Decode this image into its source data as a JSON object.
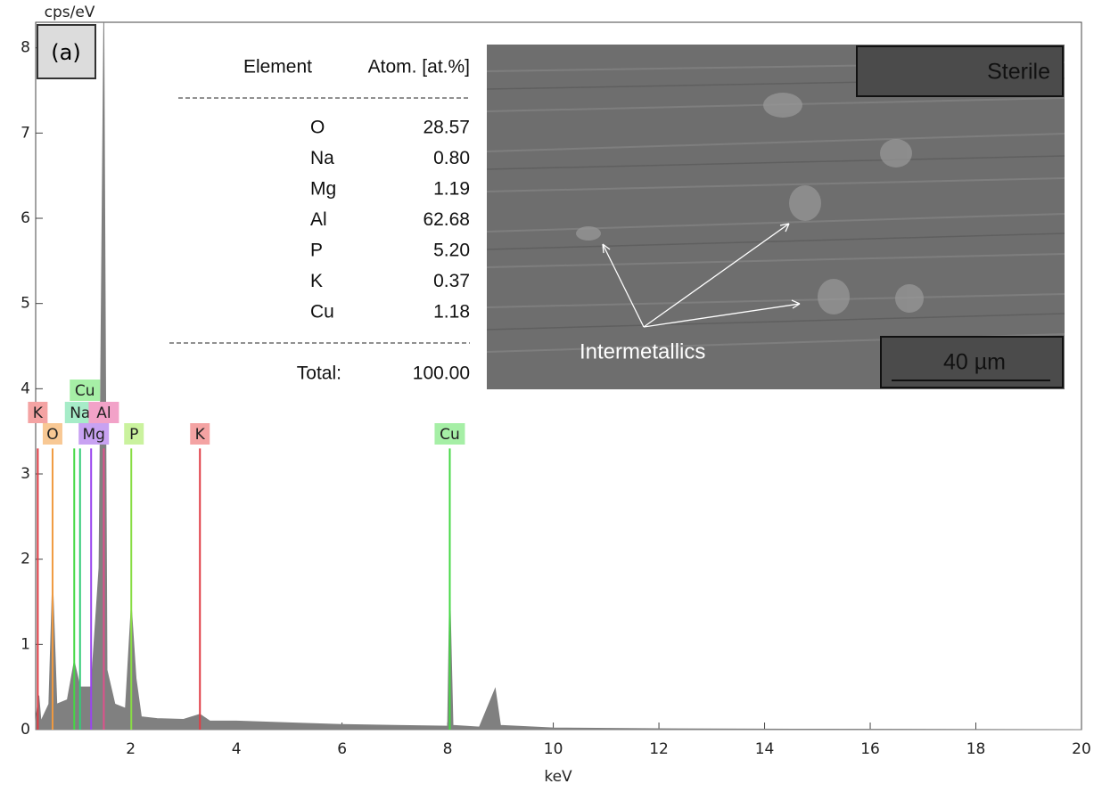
{
  "chart_data": {
    "type": "spectrum",
    "panel_label": "(a)",
    "ylabel": "cps/eV",
    "xlabel": "keV",
    "xlim": [
      0.2,
      20
    ],
    "xticks": [
      2,
      4,
      6,
      8,
      10,
      12,
      14,
      16,
      18,
      20
    ],
    "ylim": [
      0,
      8.3
    ],
    "yticks": [
      0,
      1,
      2,
      3,
      4,
      5,
      6,
      7,
      8
    ],
    "spectrum": {
      "color": "#808080",
      "x": [
        0.2,
        0.26,
        0.3,
        0.45,
        0.52,
        0.6,
        0.8,
        0.93,
        1.04,
        1.25,
        1.4,
        1.49,
        1.55,
        1.7,
        1.9,
        2.01,
        2.1,
        2.2,
        2.5,
        3,
        3.31,
        3.5,
        4,
        5,
        6,
        7,
        8,
        8.04,
        8.1,
        8.6,
        8.9,
        9,
        10,
        12,
        15,
        20
      ],
      "values": [
        0.1,
        0.4,
        0.1,
        0.3,
        1.75,
        0.3,
        0.35,
        0.8,
        0.5,
        0.5,
        1.9,
        8.3,
        0.7,
        0.3,
        0.25,
        1.45,
        0.6,
        0.15,
        0.13,
        0.12,
        0.18,
        0.1,
        0.1,
        0.08,
        0.06,
        0.05,
        0.04,
        1.65,
        0.05,
        0.03,
        0.48,
        0.05,
        0.02,
        0.01,
        0.005,
        0
      ]
    },
    "element_lines": [
      {
        "name": "K",
        "x": 0.24,
        "height": 3.3,
        "color": "#e03c44",
        "label_color": "#f4a3a3"
      },
      {
        "name": "O",
        "x": 0.52,
        "height": 3.3,
        "color": "#f09a40",
        "label_color": "#f8c894"
      },
      {
        "name": "Cu",
        "x": 0.93,
        "height": 3.3,
        "color": "#44d844",
        "label_color": "#a6efa6"
      },
      {
        "name": "Na",
        "x": 1.04,
        "height": 3.3,
        "color": "#33cc77",
        "label_color": "#a6ecc8"
      },
      {
        "name": "Mg",
        "x": 1.25,
        "height": 3.3,
        "color": "#9a44ee",
        "label_color": "#c8a2f2"
      },
      {
        "name": "Al",
        "x": 1.49,
        "height": 3.3,
        "color": "#e0508c",
        "label_color": "#f2a2c8"
      },
      {
        "name": "P",
        "x": 2.01,
        "height": 3.3,
        "color": "#88dd44",
        "label_color": "#caf29e"
      },
      {
        "name": "K",
        "x": 3.31,
        "height": 3.3,
        "color": "#e03c44",
        "label_color": "#f4a3a3"
      },
      {
        "name": "Cu",
        "x": 8.04,
        "height": 3.3,
        "color": "#44d844",
        "label_color": "#a6efa6"
      }
    ]
  },
  "table": {
    "header": [
      "Element",
      "Atom. [at.%]"
    ],
    "rows": [
      [
        "O",
        "28.57"
      ],
      [
        "Na",
        "0.80"
      ],
      [
        "Mg",
        "1.19"
      ],
      [
        "Al",
        "62.68"
      ],
      [
        "P",
        "5.20"
      ],
      [
        "K",
        "0.37"
      ],
      [
        "Cu",
        "1.18"
      ]
    ],
    "total": [
      "Total:",
      "100.00"
    ]
  },
  "image": {
    "label": "Sterile",
    "annotation": "Intermetallics",
    "scale_bar": "40 µm"
  }
}
